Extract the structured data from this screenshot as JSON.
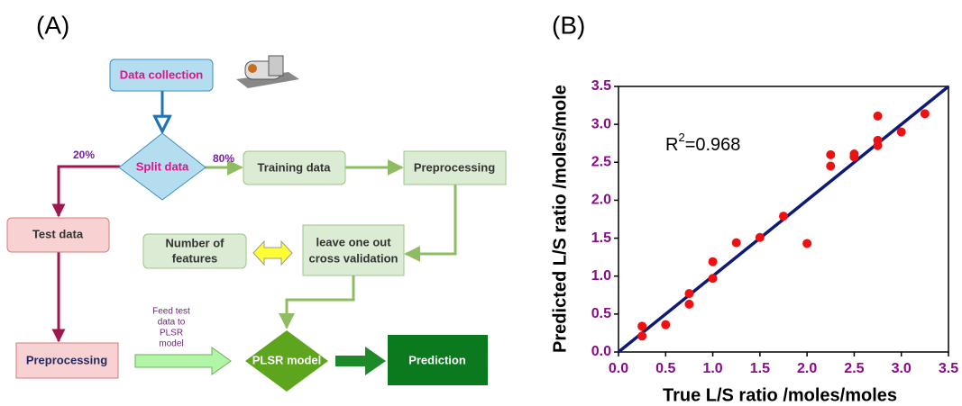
{
  "diagram": {
    "label": "(A)",
    "nodes": {
      "data_collection": "Data collection",
      "split_data": "Split data",
      "training_data": "Training data",
      "preprocessing_train": "Preprocessing",
      "test_data": "Test data",
      "number_of_features": [
        "Number of",
        "features"
      ],
      "cross_validation": [
        "leave one out",
        "cross validation"
      ],
      "preprocessing_test": "Preprocessing",
      "plsr_model": "PLSR model",
      "prediction": "Prediction"
    },
    "edge_labels": {
      "test_share": "20%",
      "train_share": "80%",
      "feed": [
        "Feed test",
        "data to",
        "PLSR",
        "model"
      ]
    }
  },
  "chart_data": {
    "type": "scatter",
    "panel_label": "(B)",
    "annotation": {
      "text": "R",
      "superscript": "2",
      "rest": "=0.968"
    },
    "x_label": "True L/S ratio /moles/moles",
    "y_label": "Predicted L/S ratio /moles/mole",
    "x": [
      0.25,
      0.25,
      0.5,
      0.75,
      0.75,
      1.0,
      1.0,
      1.25,
      1.5,
      1.75,
      2.0,
      2.25,
      2.25,
      2.5,
      2.5,
      2.75,
      2.75,
      2.75,
      3.0,
      3.25
    ],
    "y": [
      0.34,
      0.21,
      0.36,
      0.77,
      0.63,
      1.19,
      0.97,
      1.44,
      1.51,
      1.79,
      1.43,
      2.6,
      2.45,
      2.61,
      2.57,
      3.11,
      2.79,
      2.72,
      2.9,
      3.14
    ],
    "color": "#ee1111",
    "fit_line": {
      "x": [
        0,
        3.5
      ],
      "y": [
        0,
        3.5
      ],
      "color": "#0d1a7a"
    },
    "xlim": [
      0,
      3.5
    ],
    "ylim": [
      0,
      3.5
    ],
    "xticks": [
      {
        "value": 0,
        "label": "0.0"
      },
      0.5,
      {
        "value": 1,
        "label": "1.0"
      },
      1.5,
      {
        "value": 2,
        "label": "2.0"
      },
      2.5,
      {
        "value": 3,
        "label": "3.0"
      },
      3.5
    ],
    "yticks": [
      {
        "value": 0,
        "label": "0.0"
      },
      0.5,
      {
        "value": 1,
        "label": "1.0"
      },
      1.5,
      {
        "value": 2,
        "label": "2.0"
      },
      2.5,
      {
        "value": 3,
        "label": "3.0"
      },
      3.5
    ]
  }
}
